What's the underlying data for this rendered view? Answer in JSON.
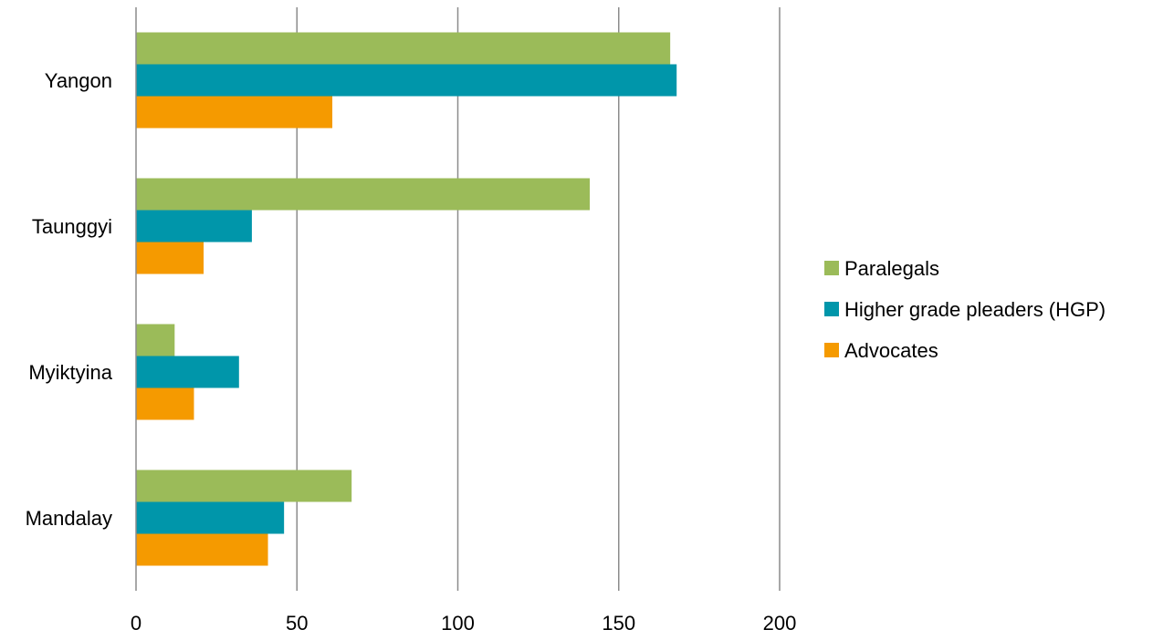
{
  "chart_data": {
    "type": "bar",
    "orientation": "horizontal",
    "title": "",
    "xlabel": "",
    "ylabel": "",
    "categories": [
      "Yangon",
      "Taunggyi",
      "Myiktyina",
      "Mandalay"
    ],
    "series": [
      {
        "name": "Paralegals",
        "color": "#9BBB59",
        "values": [
          166,
          141,
          12,
          67
        ]
      },
      {
        "name": "Higher grade pleaders (HGP)",
        "color": "#0096AA",
        "values": [
          168,
          36,
          32,
          46
        ]
      },
      {
        "name": "Advocates",
        "color": "#F59A00",
        "values": [
          61,
          21,
          18,
          41
        ]
      }
    ],
    "xlim": [
      0,
      200
    ],
    "x_ticks": [
      0,
      50,
      100,
      150,
      200
    ],
    "grid": true,
    "legend_position": "right"
  }
}
